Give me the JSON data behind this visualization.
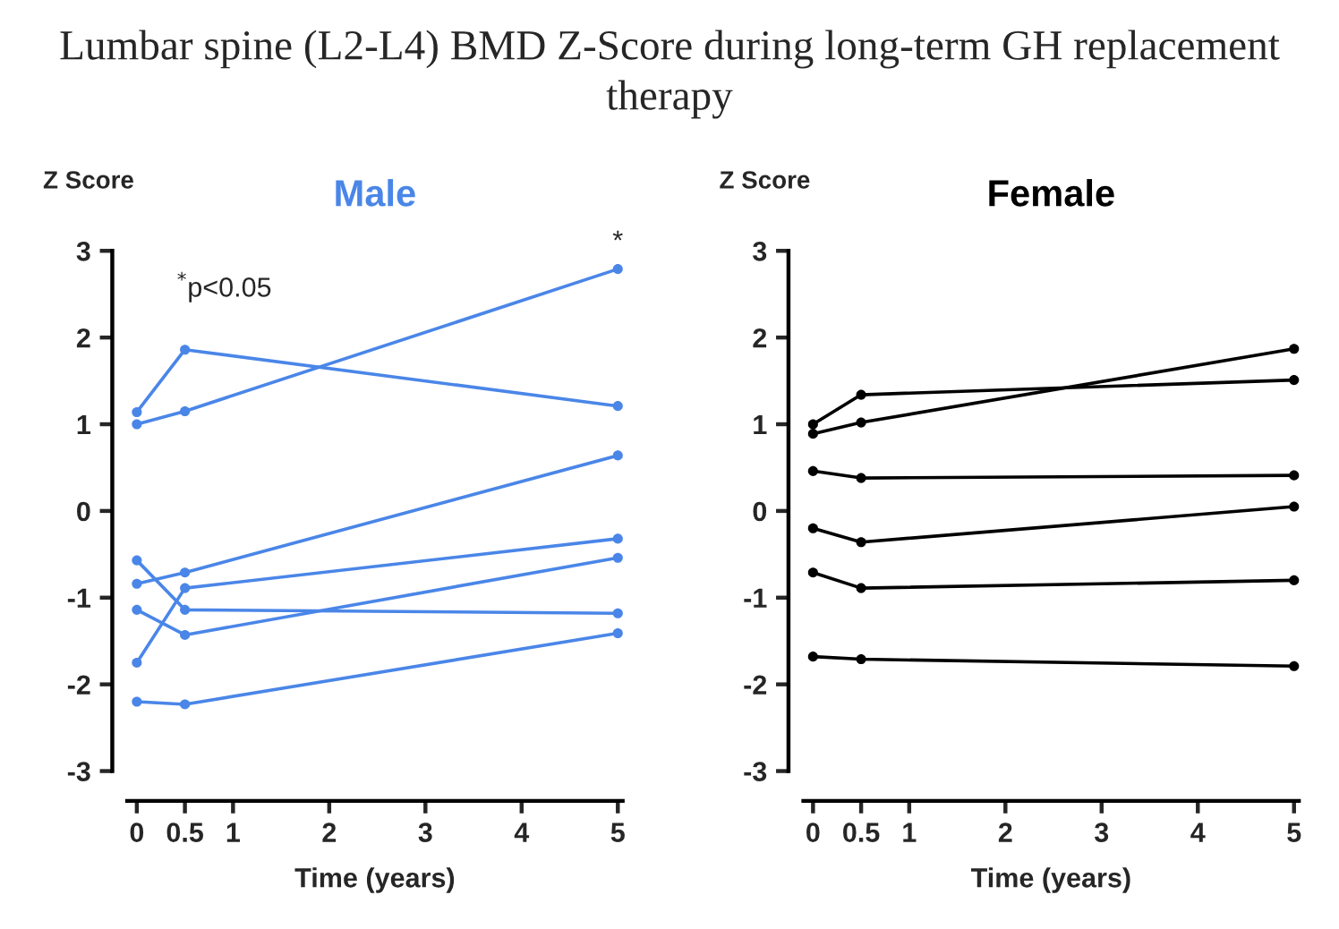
{
  "chart_data": [
    {
      "type": "line",
      "title": "Male",
      "xlabel": "Time (years)",
      "ylabel": "Z Score",
      "annotations": [
        "Lumbar spine (L2-L4) BMD Z-Score during long-term GH replacement therapy",
        "$^{*}$p<0.05",
        {
          "text": "*",
          "x": 5,
          "y": 2.95
        }
      ],
      "x": [
        0,
        0.5,
        5
      ],
      "marker": "circle",
      "line_style": "solid",
      "grid": false,
      "legend": false,
      "xlim": [
        -0.1,
        5.05
      ],
      "ylim": [
        -3,
        3
      ],
      "xticks": [
        0,
        0.5,
        1,
        2,
        3,
        4,
        5
      ],
      "yticks": [
        -3,
        -2,
        -1,
        0,
        1,
        2,
        3
      ],
      "series": [
        {
          "color": "#4a86e8",
          "values": [
            1.14,
            1.86,
            1.21
          ]
        },
        {
          "color": "#4a86e8",
          "values": [
            1.0,
            1.15,
            2.79
          ]
        },
        {
          "color": "#4a86e8",
          "values": [
            -0.84,
            -0.71,
            0.64
          ]
        },
        {
          "color": "#4a86e8",
          "values": [
            -0.57,
            -1.14,
            -1.18
          ]
        },
        {
          "color": "#4a86e8",
          "values": [
            -1.14,
            -1.43,
            -0.54
          ]
        },
        {
          "color": "#4a86e8",
          "values": [
            -1.75,
            -0.89,
            -0.32
          ]
        },
        {
          "color": "#4a86e8",
          "values": [
            -2.2,
            -2.23,
            -1.41
          ]
        }
      ]
    },
    {
      "type": "line",
      "title": "Female",
      "xlabel": "Time (years)",
      "ylabel": "Z Score",
      "x": [
        0,
        0.5,
        5
      ],
      "marker": "circle",
      "line_style": "solid",
      "grid": false,
      "legend": false,
      "xlim": [
        -0.1,
        5.05
      ],
      "ylim": [
        -3,
        3
      ],
      "xticks": [
        0,
        0.5,
        1,
        2,
        3,
        4,
        5
      ],
      "yticks": [
        -3,
        -2,
        -1,
        0,
        1,
        2,
        3
      ],
      "series": [
        {
          "color": "#000000",
          "values": [
            1.0,
            1.34,
            1.51
          ]
        },
        {
          "color": "#000000",
          "values": [
            0.89,
            1.02,
            1.87
          ]
        },
        {
          "color": "#000000",
          "values": [
            0.46,
            0.38,
            0.41
          ]
        },
        {
          "color": "#000000",
          "values": [
            -0.2,
            -0.36,
            0.05
          ]
        },
        {
          "color": "#000000",
          "values": [
            -0.71,
            -0.89,
            -0.8
          ]
        },
        {
          "color": "#000000",
          "values": [
            -1.68,
            -1.71,
            -1.79
          ]
        }
      ]
    }
  ]
}
